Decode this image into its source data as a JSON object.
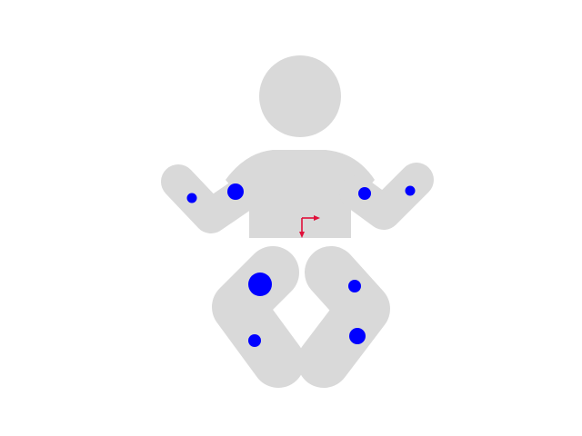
{
  "figure": {
    "silhouette_color": "#d9d9d9",
    "marker_color": "#0000ff",
    "axis_color": "#e0103a",
    "markers": [
      {
        "id": "right-upper-arm",
        "size": "large"
      },
      {
        "id": "right-forearm",
        "size": "small"
      },
      {
        "id": "left-upper-arm",
        "size": "medium"
      },
      {
        "id": "left-forearm",
        "size": "small"
      },
      {
        "id": "right-thigh",
        "size": "xlarge"
      },
      {
        "id": "right-shin",
        "size": "medium"
      },
      {
        "id": "left-thigh",
        "size": "medium"
      },
      {
        "id": "left-shin",
        "size": "large"
      }
    ]
  }
}
